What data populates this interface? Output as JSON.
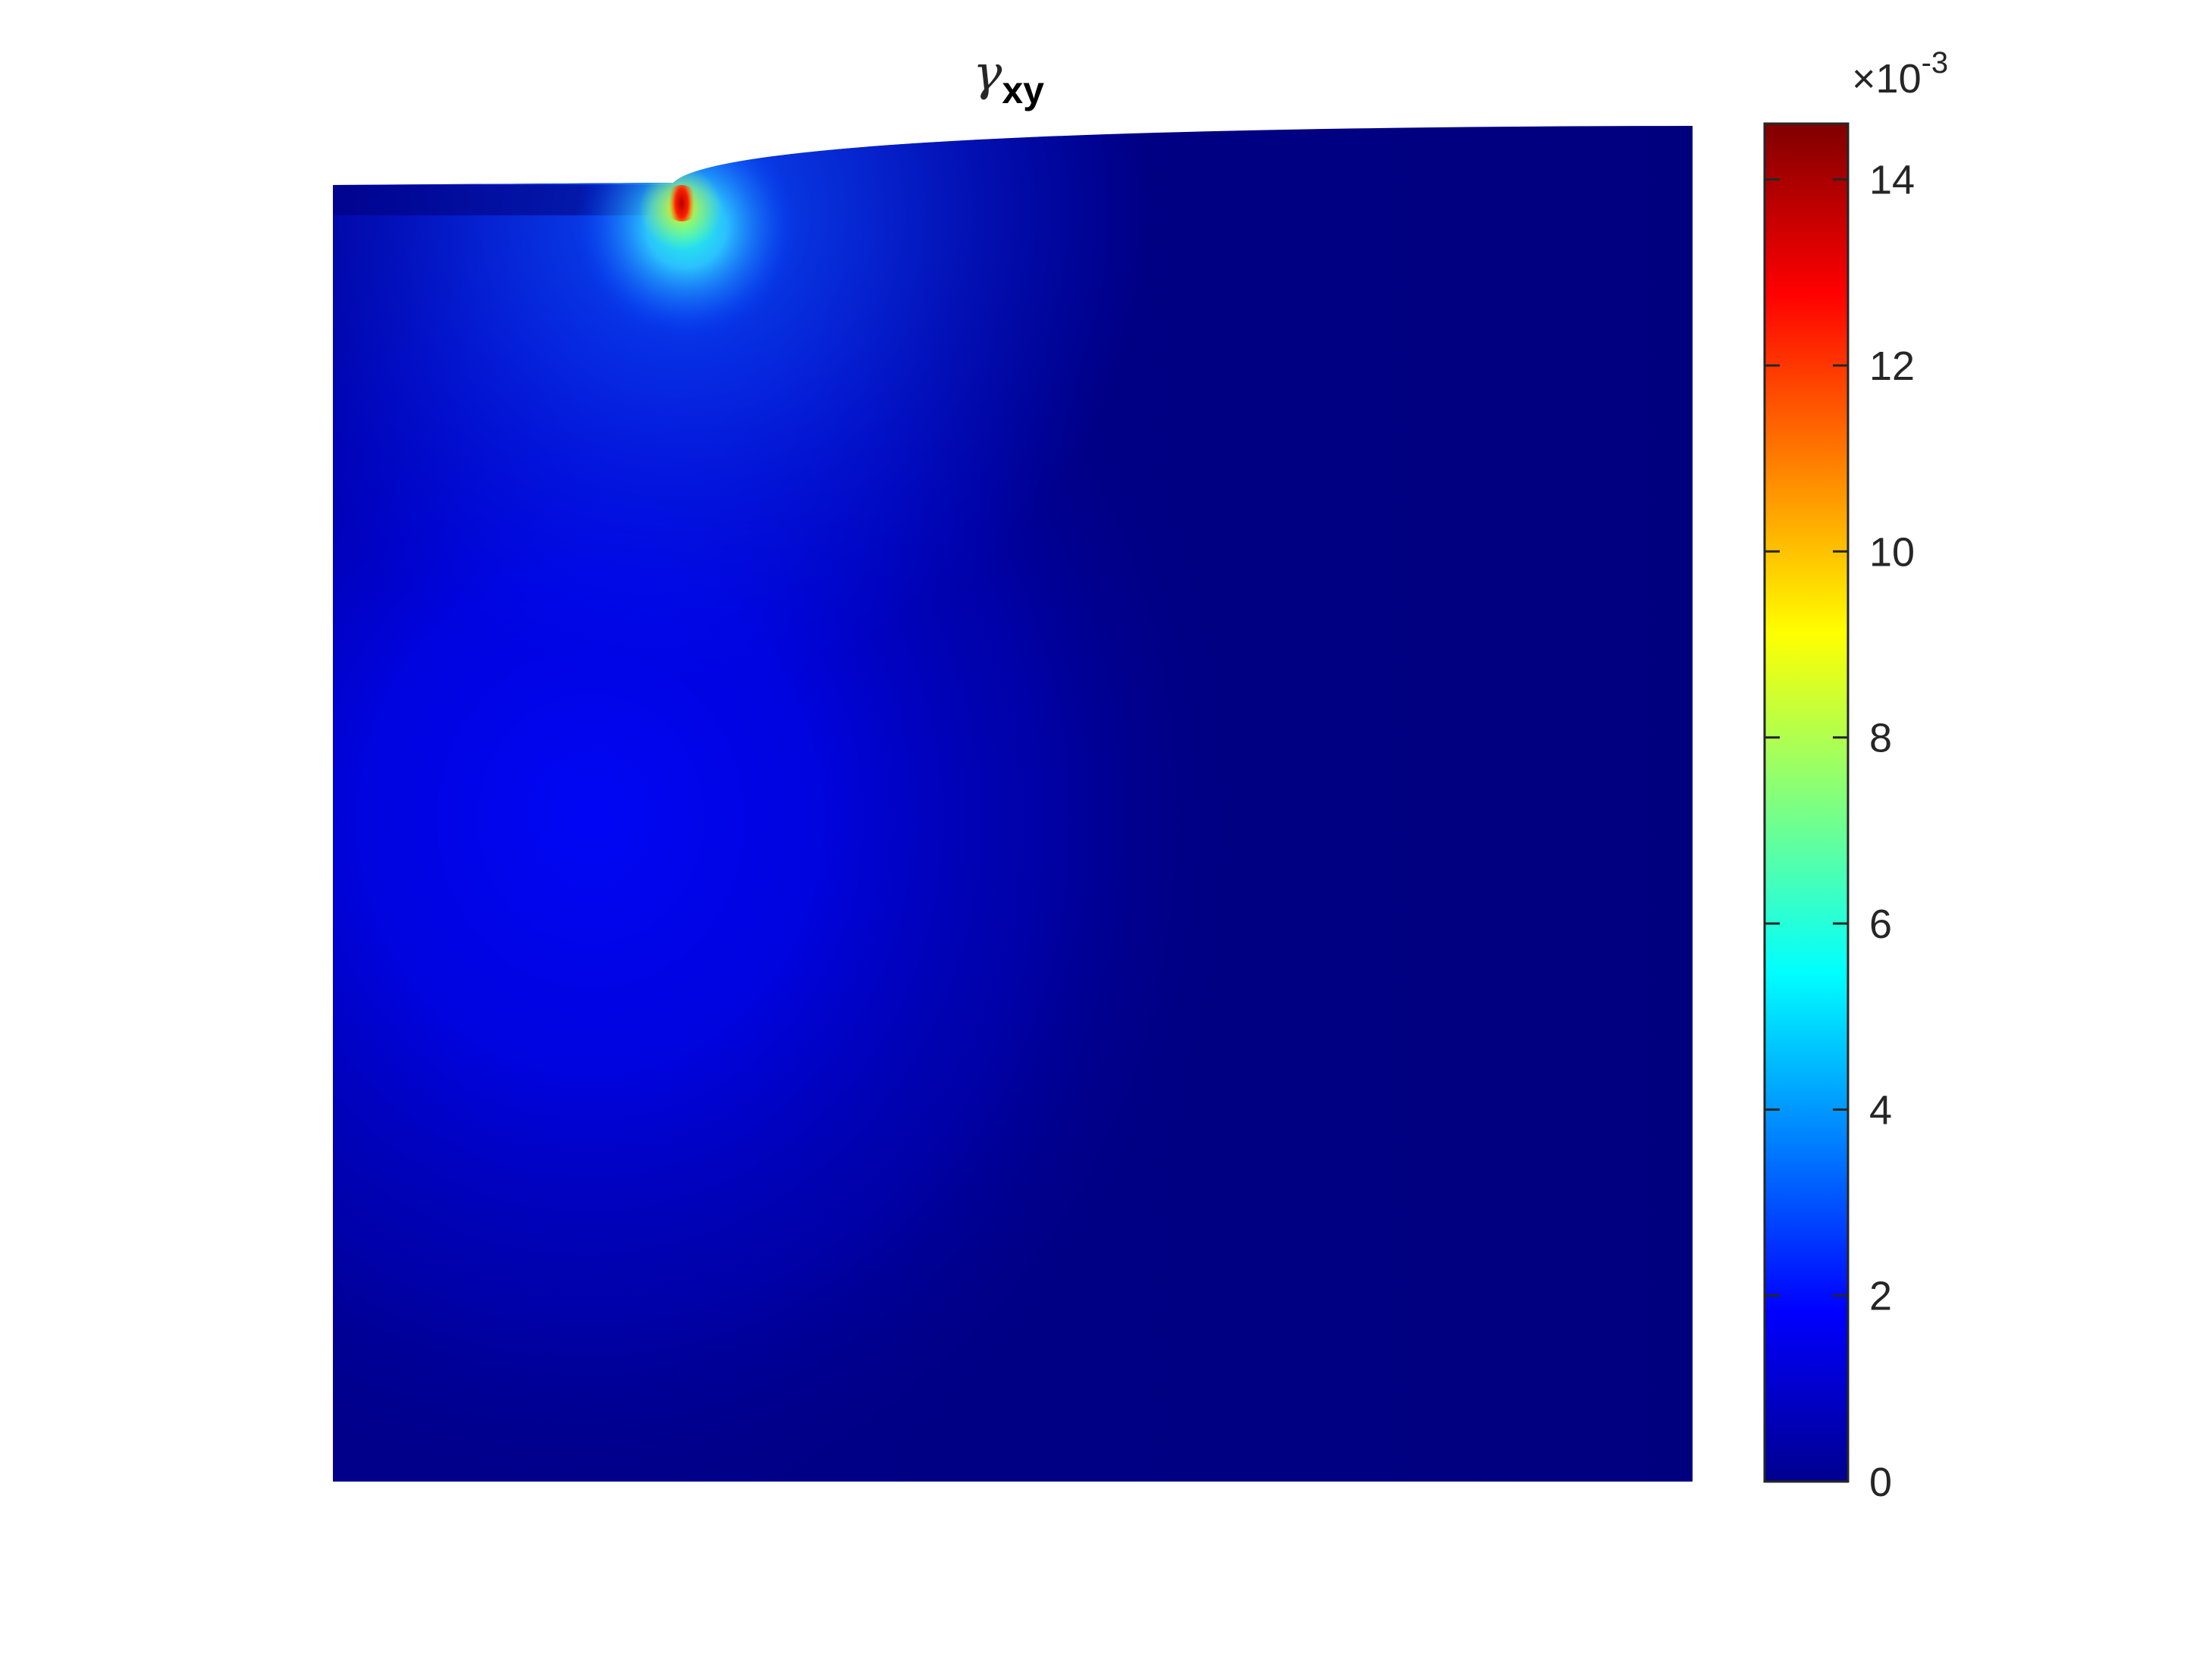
{
  "chart_data": {
    "type": "heatmap",
    "title": {
      "symbol": "γ",
      "subscript": "xy"
    },
    "xlabel": "",
    "ylabel": "",
    "axes_visible": false,
    "grid": false,
    "legend": "none",
    "colormap": "jet",
    "colorbar": {
      "location": "right",
      "multiplier_base": "×10",
      "multiplier_exponent": "-3",
      "scale": 0.001,
      "clim": [
        0,
        14.6
      ],
      "ticks": [
        0,
        2,
        4,
        6,
        8,
        10,
        12,
        14
      ],
      "tick_labels": [
        "0",
        "2",
        "4",
        "6",
        "8",
        "10",
        "12",
        "14"
      ]
    },
    "field": {
      "description_of_values": "shear strain concentrated at the step of the deformed top surface, decaying into the domain",
      "peak_value": 14.5,
      "peak_location": [
        0.25,
        0.985
      ],
      "background_value": 0.3,
      "plume_center": [
        0.38,
        0.55
      ],
      "plume_value": 2.0
    },
    "colors": {
      "jet_low": "#00008f",
      "jet_mid_blue": "#0000ff",
      "jet_cyan": "#00ffff",
      "jet_yellow": "#ffff00",
      "jet_red": "#ff0000",
      "jet_high": "#800000",
      "tick_text": "#262626",
      "frame": "#262626"
    }
  }
}
